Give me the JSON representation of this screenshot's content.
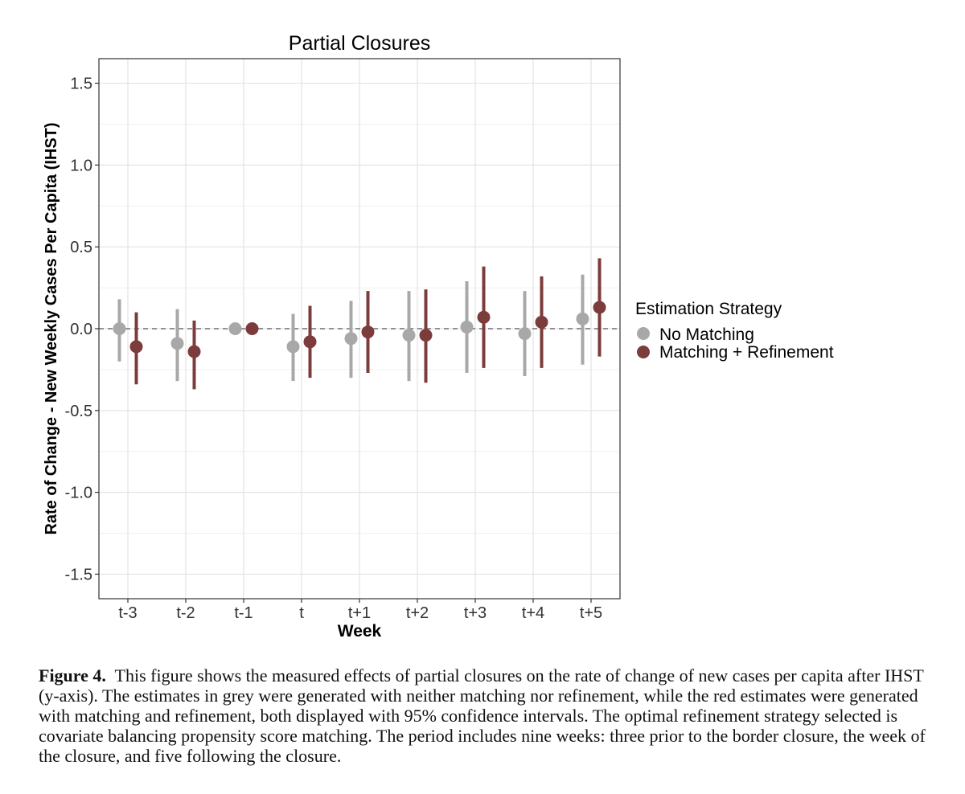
{
  "chart_data": {
    "type": "scatter",
    "title": "Partial Closures",
    "xlabel": "Week",
    "ylabel": "Rate of Change - New Weekly Cases Per Capita (IHST)",
    "categories": [
      "t-3",
      "t-2",
      "t-1",
      "t",
      "t+1",
      "t+2",
      "t+3",
      "t+4",
      "t+5"
    ],
    "ylim": [
      -1.65,
      1.65
    ],
    "yticks": [
      -1.5,
      -1.0,
      -0.5,
      0.0,
      0.5,
      1.0,
      1.5
    ],
    "ytick_labels": [
      "-1.5",
      "-1.0",
      "-0.5",
      "0.0",
      "0.5",
      "1.0",
      "1.5"
    ],
    "grid": true,
    "reference_line": 0.0,
    "legend": {
      "title": "Estimation Strategy",
      "position": "right"
    },
    "series": [
      {
        "name": "No Matching",
        "color": "#a8a8a8",
        "estimates": [
          0.0,
          -0.09,
          0.0,
          -0.11,
          -0.06,
          -0.04,
          0.01,
          -0.03,
          0.06
        ],
        "lower": [
          -0.2,
          -0.32,
          0.0,
          -0.32,
          -0.3,
          -0.32,
          -0.27,
          -0.29,
          -0.22
        ],
        "upper": [
          0.18,
          0.12,
          0.0,
          0.09,
          0.17,
          0.23,
          0.29,
          0.23,
          0.33
        ]
      },
      {
        "name": "Matching + Refinement",
        "color": "#7d3c3c",
        "estimates": [
          -0.11,
          -0.14,
          0.0,
          -0.08,
          -0.02,
          -0.04,
          0.07,
          0.04,
          0.13
        ],
        "lower": [
          -0.34,
          -0.37,
          0.0,
          -0.3,
          -0.27,
          -0.33,
          -0.24,
          -0.24,
          -0.17
        ],
        "upper": [
          0.1,
          0.05,
          0.0,
          0.14,
          0.23,
          0.24,
          0.38,
          0.32,
          0.43
        ]
      }
    ]
  },
  "caption": {
    "label": "Figure 4.",
    "text": "This figure shows the measured effects of partial closures on the rate of change of new cases per capita after IHST (y-axis). The estimates in grey were generated with neither matching nor refinement, while the red estimates were generated with matching and refinement, both displayed with 95% confidence intervals. The optimal refinement strategy selected is covariate balancing propensity score matching. The period includes nine weeks: three prior to the border closure, the week of the closure, and five following the closure."
  }
}
